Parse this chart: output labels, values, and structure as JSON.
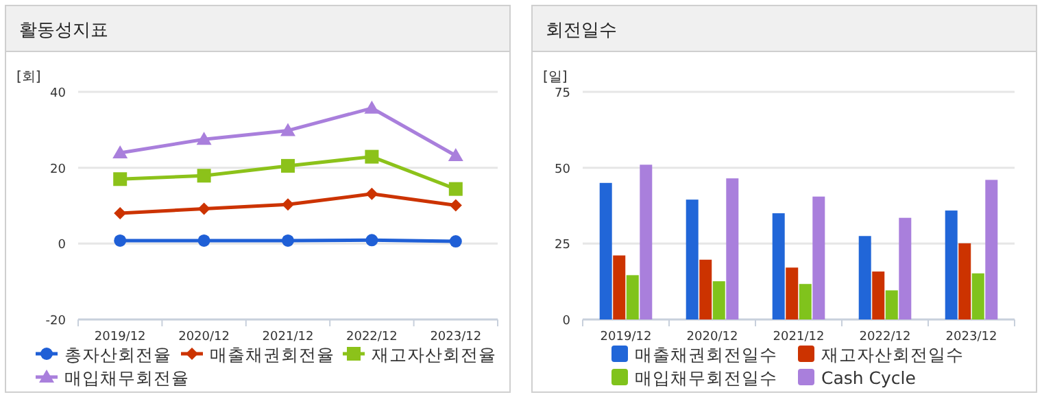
{
  "chart_data": [
    {
      "type": "line",
      "title": "활동성지표",
      "ylabel": "[회]",
      "categories": [
        "2019/12",
        "2020/12",
        "2021/12",
        "2022/12",
        "2023/12"
      ],
      "ylim": [
        -20,
        40
      ],
      "yticks": [
        -20,
        0,
        20,
        40
      ],
      "grid": "y",
      "legend": "bottom",
      "series": [
        {
          "name": "총자산회전율",
          "color": "#1f5fd6",
          "marker": "circle",
          "values": [
            0.8,
            0.8,
            0.8,
            0.9,
            0.6
          ]
        },
        {
          "name": "매출채권회전율",
          "color": "#cc3300",
          "marker": "diamond",
          "values": [
            8.0,
            9.2,
            10.3,
            13.1,
            10.1
          ]
        },
        {
          "name": "재고자산회전율",
          "color": "#8cc21a",
          "marker": "square",
          "values": [
            17.0,
            17.9,
            20.5,
            22.9,
            14.4
          ]
        },
        {
          "name": "매입채무회전율",
          "color": "#a97fdc",
          "marker": "triangle",
          "values": [
            23.9,
            27.5,
            29.8,
            35.7,
            23.2
          ]
        }
      ]
    },
    {
      "type": "bar",
      "title": "회전일수",
      "ylabel": "[일]",
      "categories": [
        "2019/12",
        "2020/12",
        "2021/12",
        "2022/12",
        "2023/12"
      ],
      "ylim": [
        0,
        75
      ],
      "yticks": [
        0,
        25,
        50,
        75
      ],
      "grid": "y",
      "legend": "bottom",
      "series": [
        {
          "name": "매출채권회전일수",
          "color": "#2166d8",
          "values": [
            45.0,
            39.5,
            35.0,
            27.5,
            35.9
          ]
        },
        {
          "name": "재고자산회전일수",
          "color": "#cc3300",
          "values": [
            21.1,
            19.7,
            17.1,
            15.8,
            25.1
          ]
        },
        {
          "name": "매입채무회전일수",
          "color": "#80c31c",
          "values": [
            14.6,
            12.6,
            11.7,
            9.6,
            15.2
          ]
        },
        {
          "name": "Cash Cycle",
          "color": "#a97fdc",
          "values": [
            51.0,
            46.5,
            40.5,
            33.5,
            46.0
          ]
        }
      ]
    }
  ]
}
